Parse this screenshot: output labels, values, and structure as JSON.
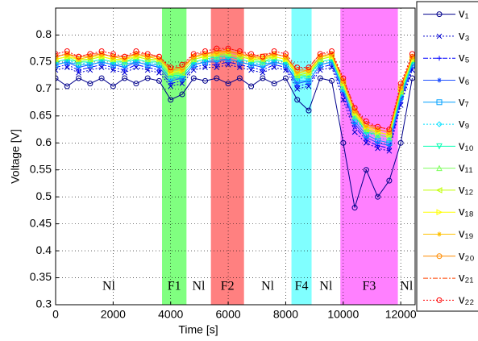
{
  "chart_data": {
    "type": "line",
    "xlabel": "Time [s]",
    "ylabel": "Voltage [V]",
    "xlim": [
      0,
      12500
    ],
    "ylim": [
      0.3,
      0.85
    ],
    "xticks": [
      0,
      2000,
      4000,
      6000,
      8000,
      10000,
      12000
    ],
    "yticks": [
      0.3,
      0.35,
      0.4,
      0.45,
      0.5,
      0.55,
      0.6,
      0.65,
      0.7,
      0.75,
      0.8
    ],
    "grid": true,
    "legend": "outside-right",
    "phases": [
      {
        "label": "Nl",
        "start": 0,
        "end": 3700
      },
      {
        "label": "F1",
        "start": 3700,
        "end": 4550,
        "color": "#80ff80"
      },
      {
        "label": "Nl",
        "start": 4550,
        "end": 5400
      },
      {
        "label": "F2",
        "start": 5400,
        "end": 6550,
        "color": "#ff8080"
      },
      {
        "label": "Nl",
        "start": 6550,
        "end": 8200
      },
      {
        "label": "F4",
        "start": 8200,
        "end": 8900,
        "color": "#80ffff"
      },
      {
        "label": "Nl",
        "start": 8900,
        "end": 9900
      },
      {
        "label": "F3",
        "start": 9900,
        "end": 11900,
        "color": "#ff80ff"
      },
      {
        "label": "Nl",
        "start": 11900,
        "end": 12500
      }
    ],
    "x": [
      0,
      400,
      800,
      1200,
      1600,
      2000,
      2400,
      2800,
      3200,
      3600,
      4000,
      4400,
      4800,
      5200,
      5600,
      6000,
      6400,
      6800,
      7200,
      7600,
      8000,
      8400,
      8800,
      9200,
      9600,
      10000,
      10400,
      10800,
      11200,
      11600,
      12000,
      12400
    ],
    "series": [
      {
        "name": "v₁",
        "color": "#00008b",
        "marker": "o",
        "linestyle": "-",
        "values": [
          0.72,
          0.705,
          0.72,
          0.71,
          0.72,
          0.705,
          0.72,
          0.71,
          0.72,
          0.715,
          0.68,
          0.69,
          0.72,
          0.715,
          0.72,
          0.71,
          0.72,
          0.705,
          0.72,
          0.71,
          0.72,
          0.68,
          0.66,
          0.72,
          0.715,
          0.6,
          0.48,
          0.55,
          0.5,
          0.53,
          0.6,
          0.72
        ]
      },
      {
        "name": "v₃",
        "color": "#0000cd",
        "marker": "x",
        "linestyle": ":",
        "values": [
          0.735,
          0.74,
          0.73,
          0.735,
          0.74,
          0.735,
          0.73,
          0.74,
          0.735,
          0.73,
          0.705,
          0.71,
          0.735,
          0.74,
          0.74,
          0.745,
          0.74,
          0.735,
          0.73,
          0.74,
          0.735,
          0.7,
          0.705,
          0.735,
          0.74,
          0.68,
          0.62,
          0.6,
          0.59,
          0.585,
          0.67,
          0.735
        ]
      },
      {
        "name": "v₅",
        "color": "#0000ff",
        "marker": "+",
        "linestyle": "-.",
        "values": [
          0.74,
          0.745,
          0.735,
          0.74,
          0.745,
          0.74,
          0.735,
          0.745,
          0.74,
          0.735,
          0.71,
          0.715,
          0.74,
          0.745,
          0.745,
          0.75,
          0.745,
          0.74,
          0.735,
          0.745,
          0.74,
          0.705,
          0.71,
          0.74,
          0.745,
          0.69,
          0.63,
          0.605,
          0.595,
          0.59,
          0.675,
          0.74
        ]
      },
      {
        "name": "v₆",
        "color": "#1e50ff",
        "marker": "*",
        "linestyle": "-",
        "values": [
          0.745,
          0.75,
          0.74,
          0.745,
          0.75,
          0.745,
          0.74,
          0.75,
          0.745,
          0.74,
          0.715,
          0.72,
          0.745,
          0.75,
          0.75,
          0.755,
          0.75,
          0.745,
          0.74,
          0.75,
          0.745,
          0.71,
          0.715,
          0.745,
          0.75,
          0.695,
          0.635,
          0.61,
          0.6,
          0.595,
          0.68,
          0.745
        ]
      },
      {
        "name": "v₇",
        "color": "#00a0ff",
        "marker": "s",
        "linestyle": "-",
        "values": [
          0.745,
          0.75,
          0.745,
          0.745,
          0.75,
          0.745,
          0.745,
          0.75,
          0.745,
          0.745,
          0.72,
          0.72,
          0.745,
          0.75,
          0.755,
          0.755,
          0.75,
          0.745,
          0.745,
          0.75,
          0.745,
          0.715,
          0.715,
          0.745,
          0.75,
          0.7,
          0.64,
          0.615,
          0.605,
          0.6,
          0.685,
          0.745
        ]
      },
      {
        "name": "v₉",
        "color": "#00e0ff",
        "marker": "d",
        "linestyle": ":",
        "values": [
          0.75,
          0.755,
          0.745,
          0.75,
          0.755,
          0.75,
          0.745,
          0.755,
          0.75,
          0.745,
          0.72,
          0.725,
          0.75,
          0.755,
          0.755,
          0.76,
          0.755,
          0.75,
          0.745,
          0.755,
          0.75,
          0.72,
          0.72,
          0.75,
          0.755,
          0.7,
          0.645,
          0.62,
          0.61,
          0.605,
          0.69,
          0.75
        ]
      },
      {
        "name": "v₁₀",
        "color": "#00ffb0",
        "marker": "v",
        "linestyle": "-",
        "values": [
          0.75,
          0.755,
          0.75,
          0.75,
          0.755,
          0.75,
          0.75,
          0.755,
          0.75,
          0.75,
          0.725,
          0.725,
          0.75,
          0.755,
          0.76,
          0.76,
          0.755,
          0.75,
          0.75,
          0.755,
          0.75,
          0.72,
          0.725,
          0.75,
          0.755,
          0.705,
          0.65,
          0.62,
          0.615,
          0.61,
          0.69,
          0.75
        ]
      },
      {
        "name": "v₁₁",
        "color": "#80ff60",
        "marker": "^",
        "linestyle": "-",
        "values": [
          0.755,
          0.76,
          0.75,
          0.755,
          0.76,
          0.755,
          0.75,
          0.76,
          0.755,
          0.75,
          0.725,
          0.73,
          0.755,
          0.76,
          0.76,
          0.765,
          0.76,
          0.755,
          0.75,
          0.76,
          0.755,
          0.725,
          0.725,
          0.755,
          0.76,
          0.705,
          0.65,
          0.625,
          0.615,
          0.61,
          0.695,
          0.755
        ]
      },
      {
        "name": "v₁₂",
        "color": "#c0ff00",
        "marker": "<",
        "linestyle": "-",
        "values": [
          0.755,
          0.76,
          0.755,
          0.755,
          0.76,
          0.755,
          0.755,
          0.76,
          0.755,
          0.755,
          0.73,
          0.73,
          0.755,
          0.76,
          0.765,
          0.765,
          0.76,
          0.755,
          0.755,
          0.76,
          0.755,
          0.725,
          0.73,
          0.755,
          0.76,
          0.71,
          0.655,
          0.625,
          0.62,
          0.615,
          0.695,
          0.755
        ]
      },
      {
        "name": "v₁₈",
        "color": "#ffff00",
        "marker": ">",
        "linestyle": "-",
        "values": [
          0.755,
          0.76,
          0.755,
          0.76,
          0.76,
          0.755,
          0.755,
          0.76,
          0.76,
          0.755,
          0.73,
          0.735,
          0.76,
          0.76,
          0.765,
          0.77,
          0.765,
          0.755,
          0.76,
          0.76,
          0.755,
          0.73,
          0.73,
          0.76,
          0.76,
          0.71,
          0.655,
          0.63,
          0.62,
          0.615,
          0.7,
          0.755
        ]
      },
      {
        "name": "v₁₉",
        "color": "#ffc000",
        "marker": "*",
        "linestyle": "-",
        "values": [
          0.76,
          0.765,
          0.755,
          0.76,
          0.765,
          0.76,
          0.755,
          0.765,
          0.76,
          0.755,
          0.735,
          0.735,
          0.76,
          0.765,
          0.765,
          0.77,
          0.765,
          0.76,
          0.755,
          0.765,
          0.76,
          0.73,
          0.735,
          0.76,
          0.765,
          0.715,
          0.66,
          0.63,
          0.625,
          0.62,
          0.7,
          0.76
        ]
      },
      {
        "name": "v₂₀",
        "color": "#ff8c00",
        "marker": "o",
        "linestyle": "-",
        "values": [
          0.76,
          0.765,
          0.76,
          0.76,
          0.765,
          0.76,
          0.76,
          0.765,
          0.76,
          0.76,
          0.735,
          0.74,
          0.76,
          0.765,
          0.77,
          0.77,
          0.765,
          0.76,
          0.76,
          0.765,
          0.76,
          0.735,
          0.735,
          0.76,
          0.765,
          0.715,
          0.66,
          0.635,
          0.625,
          0.62,
          0.705,
          0.76
        ]
      },
      {
        "name": "v₂₁",
        "color": "#ff4500",
        "marker": "",
        "linestyle": "-.",
        "values": [
          0.76,
          0.765,
          0.76,
          0.765,
          0.765,
          0.76,
          0.76,
          0.765,
          0.765,
          0.76,
          0.74,
          0.74,
          0.765,
          0.765,
          0.77,
          0.775,
          0.77,
          0.76,
          0.765,
          0.765,
          0.76,
          0.735,
          0.74,
          0.765,
          0.765,
          0.72,
          0.665,
          0.635,
          0.63,
          0.625,
          0.705,
          0.76
        ]
      },
      {
        "name": "v₂₂",
        "color": "#ff0000",
        "marker": "o",
        "linestyle": ":",
        "values": [
          0.765,
          0.77,
          0.76,
          0.765,
          0.77,
          0.765,
          0.76,
          0.77,
          0.765,
          0.76,
          0.74,
          0.745,
          0.765,
          0.77,
          0.775,
          0.775,
          0.77,
          0.765,
          0.76,
          0.77,
          0.765,
          0.74,
          0.74,
          0.765,
          0.77,
          0.72,
          0.665,
          0.64,
          0.63,
          0.625,
          0.71,
          0.765
        ]
      }
    ]
  }
}
